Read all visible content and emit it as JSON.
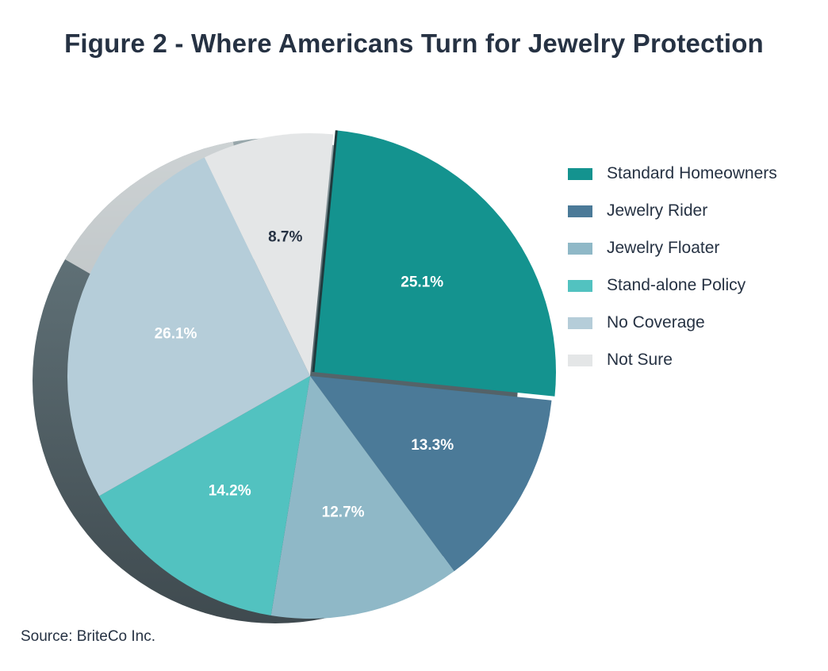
{
  "chart_data": {
    "type": "pie",
    "title": "Figure 2 - Where Americans Turn for Jewelry Protection",
    "labels": [
      "Standard Homeowners",
      "Jewelry Rider",
      "Jewelry Floater",
      "Stand-alone Policy",
      "No Coverage",
      "Not Sure"
    ],
    "values": [
      25.1,
      13.3,
      12.7,
      14.2,
      26.1,
      8.7
    ],
    "value_labels": [
      "25.1%",
      "13.3%",
      "12.7%",
      "14.2%",
      "26.1%",
      "8.7%"
    ],
    "colors": [
      "#14938f",
      "#4b7a98",
      "#8fb8c7",
      "#52c2c0",
      "#b5cdd9",
      "#e4e6e7"
    ],
    "label_colors": [
      "#ffffff",
      "#ffffff",
      "#ffffff",
      "#ffffff",
      "#ffffff",
      "#263243"
    ],
    "start_slice_exploded": true,
    "legend_position": "right",
    "style": "3d"
  },
  "source": "Source: BriteCo Inc."
}
